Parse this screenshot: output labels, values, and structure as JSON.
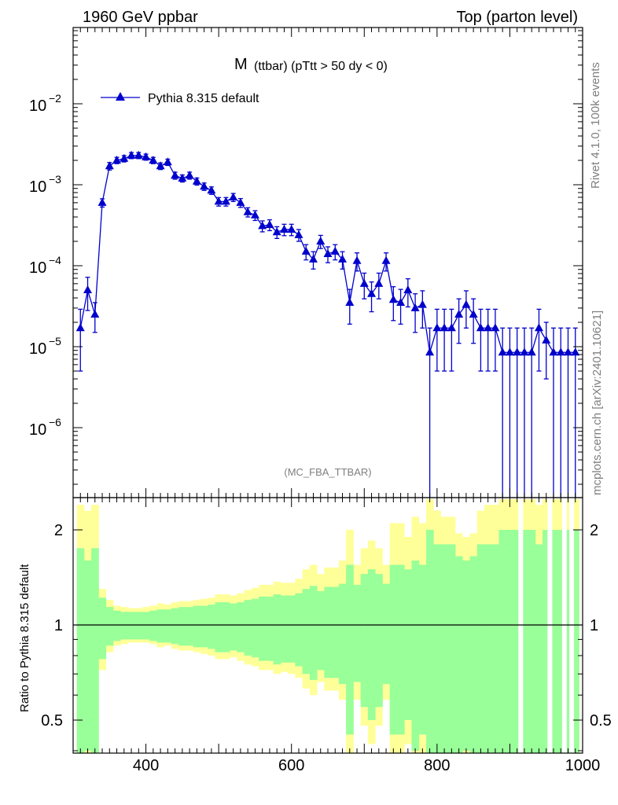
{
  "header": {
    "left_title": "1960 GeV ppbar",
    "right_title": "Top (parton level)"
  },
  "side_text": {
    "rivet": "Rivet 4.1.0,  100k events",
    "mcplots": "mcplots.cern.ch [arXiv:2401.10621]"
  },
  "colors": {
    "mc": "#0000cc",
    "band_stat": "#99ff99",
    "band_total": "#ffff99",
    "axis": "#000000",
    "watermark": "#7f7f7f"
  },
  "chart_data": [
    {
      "type": "scatter",
      "title_main": "M",
      "title_sub": "(ttbar) (pTtt > 50 dy < 0)",
      "watermark": "(MC_FBA_TTBAR)",
      "xlim": [
        300,
        1000
      ],
      "ylim": [
        1e-07,
        0.1
      ],
      "yscale": "log",
      "ytick_labels": [
        {
          "base": "10",
          "exp": "−6",
          "value": 1e-06
        },
        {
          "base": "10",
          "exp": "−5",
          "value": 1e-05
        },
        {
          "base": "10",
          "exp": "−4",
          "value": 0.0001
        },
        {
          "base": "10",
          "exp": "−3",
          "value": 0.001
        },
        {
          "base": "10",
          "exp": "−2",
          "value": 0.01
        }
      ],
      "legend": {
        "label": "Pythia 8.315 default",
        "location": "top-left"
      },
      "series": [
        {
          "name": "Pythia 8.315 default",
          "marker": "triangle-up",
          "x": [
            310,
            320,
            330,
            340,
            350,
            360,
            370,
            380,
            390,
            400,
            410,
            420,
            430,
            440,
            450,
            460,
            470,
            480,
            490,
            500,
            510,
            520,
            530,
            540,
            550,
            560,
            570,
            580,
            590,
            600,
            610,
            620,
            630,
            640,
            650,
            660,
            670,
            680,
            690,
            700,
            710,
            720,
            730,
            740,
            750,
            760,
            770,
            780,
            790,
            800,
            810,
            820,
            830,
            840,
            850,
            860,
            870,
            880,
            890,
            900,
            910,
            920,
            930,
            940,
            950,
            960,
            970,
            980,
            990
          ],
          "y": [
            1.7e-05,
            5e-05,
            2.5e-05,
            0.0006,
            0.0017,
            0.002,
            0.0021,
            0.0023,
            0.0023,
            0.0022,
            0.002,
            0.0017,
            0.0019,
            0.0013,
            0.0012,
            0.0013,
            0.0011,
            0.00095,
            0.00085,
            0.00062,
            0.00062,
            0.0007,
            0.0006,
            0.00046,
            0.00042,
            0.00031,
            0.00032,
            0.00026,
            0.00028,
            0.00028,
            0.00024,
            0.00015,
            0.00012,
            0.0002,
            0.00014,
            0.00015,
            0.00012,
            3.5e-05,
            0.000115,
            6e-05,
            4.5e-05,
            6e-05,
            0.000115,
            3.8e-05,
            3.5e-05,
            5e-05,
            3e-05,
            3.3e-05,
            8.5e-06,
            1.7e-05,
            1.7e-05,
            1.7e-05,
            2.5e-05,
            3.3e-05,
            2.5e-05,
            1.7e-05,
            1.7e-05,
            1.7e-05,
            8.5e-06,
            8.5e-06,
            8.5e-06,
            8.5e-06,
            8.5e-06,
            1.7e-05,
            1.2e-05,
            8.5e-06,
            8.5e-06,
            8.5e-06,
            8.5e-06
          ],
          "y_err_low": [
            1.2e-05,
            2.2e-05,
            1e-05,
            7e-05,
            0.00018,
            0.00018,
            0.00019,
            0.0002,
            0.0002,
            0.00019,
            0.00018,
            0.00016,
            0.00017,
            0.00013,
            0.00012,
            0.00013,
            0.00011,
            0.0001,
            9e-05,
            7.5e-05,
            7.5e-05,
            8e-05,
            7.5e-05,
            6e-05,
            5.8e-05,
            4.8e-05,
            4.9e-05,
            4.3e-05,
            4.5e-05,
            4.5e-05,
            4e-05,
            3.2e-05,
            2.9e-05,
            3.7e-05,
            3.1e-05,
            3.2e-05,
            2.9e-05,
            1.6e-05,
            2.9e-05,
            2.1e-05,
            1.8e-05,
            2.1e-05,
            2.9e-05,
            1.7e-05,
            1.6e-05,
            1.9e-05,
            1.5e-05,
            1.6e-05,
            8.5e-06,
            1.2e-05,
            1.2e-05,
            1.2e-05,
            1.4e-05,
            1.6e-05,
            1.4e-05,
            1.2e-05,
            1.2e-05,
            1.2e-05,
            8.5e-06,
            8.5e-06,
            8.5e-06,
            8.5e-06,
            8.5e-06,
            1.2e-05,
            8e-06,
            8.5e-06,
            8.5e-06,
            8.5e-06,
            8.5e-06
          ],
          "y_err_high": [
            1.2e-05,
            2.2e-05,
            1e-05,
            7e-05,
            0.00018,
            0.00018,
            0.00019,
            0.0002,
            0.0002,
            0.00019,
            0.00018,
            0.00016,
            0.00017,
            0.00013,
            0.00012,
            0.00013,
            0.00011,
            0.0001,
            9e-05,
            7.5e-05,
            7.5e-05,
            8e-05,
            7.5e-05,
            6e-05,
            5.8e-05,
            4.8e-05,
            4.9e-05,
            4.3e-05,
            4.5e-05,
            4.5e-05,
            4e-05,
            3.2e-05,
            2.9e-05,
            3.7e-05,
            3.1e-05,
            3.2e-05,
            2.9e-05,
            1.6e-05,
            2.9e-05,
            2.1e-05,
            1.8e-05,
            2.1e-05,
            2.9e-05,
            1.7e-05,
            1.6e-05,
            1.9e-05,
            1.5e-05,
            1.6e-05,
            8.5e-06,
            1.2e-05,
            1.2e-05,
            1.2e-05,
            1.4e-05,
            1.6e-05,
            1.4e-05,
            1.2e-05,
            1.2e-05,
            1.2e-05,
            8.5e-06,
            8.5e-06,
            8.5e-06,
            8.5e-06,
            8.5e-06,
            1.2e-05,
            8e-06,
            8.5e-06,
            8.5e-06,
            8.5e-06,
            8.5e-06
          ]
        }
      ]
    },
    {
      "type": "bar",
      "ylabel": "Ratio to Pythia 8.315 default",
      "xlim": [
        300,
        1000
      ],
      "ylim": [
        0.38,
        2.35
      ],
      "yscale": "log",
      "x_tick_labels": [
        "400",
        "600",
        "800",
        "1000"
      ],
      "y_tick_labels": [
        "0.5",
        "1",
        "2"
      ],
      "reference_line": 1,
      "bin_edges_start": 305,
      "bin_width": 10,
      "stat_band": {
        "name": "stat",
        "low": [
          0.25,
          0.4,
          0.25,
          0.78,
          0.86,
          0.89,
          0.9,
          0.9,
          0.9,
          0.9,
          0.89,
          0.88,
          0.88,
          0.87,
          0.86,
          0.86,
          0.85,
          0.85,
          0.84,
          0.82,
          0.82,
          0.83,
          0.82,
          0.8,
          0.79,
          0.77,
          0.77,
          0.75,
          0.76,
          0.76,
          0.74,
          0.7,
          0.67,
          0.72,
          0.68,
          0.68,
          0.65,
          0.45,
          0.66,
          0.55,
          0.5,
          0.55,
          0.65,
          0.45,
          0.45,
          0.5,
          0.4,
          0.45,
          0.0,
          0.2,
          0.2,
          0.2,
          0.35,
          0.4,
          0.35,
          0.2,
          0.2,
          0.2,
          0.0,
          0.0,
          0.0,
          0.0,
          0.0,
          0.2,
          0.0,
          0.0,
          0.0,
          0.0,
          0.0
        ],
        "high": [
          1.75,
          1.6,
          1.75,
          1.22,
          1.14,
          1.11,
          1.1,
          1.1,
          1.1,
          1.1,
          1.11,
          1.12,
          1.12,
          1.13,
          1.14,
          1.14,
          1.15,
          1.15,
          1.16,
          1.18,
          1.18,
          1.17,
          1.18,
          1.2,
          1.21,
          1.23,
          1.23,
          1.25,
          1.24,
          1.24,
          1.26,
          1.3,
          1.33,
          1.28,
          1.32,
          1.32,
          1.35,
          1.55,
          1.34,
          1.45,
          1.5,
          1.45,
          1.35,
          1.55,
          1.55,
          1.5,
          1.6,
          1.55,
          2.0,
          1.8,
          1.8,
          1.8,
          1.65,
          1.6,
          1.65,
          1.8,
          1.8,
          1.8,
          2.0,
          2.0,
          2.0,
          2.0,
          2.0,
          1.8,
          2.0,
          2.0,
          2.0,
          2.0,
          2.0
        ]
      },
      "total_band": {
        "name": "total",
        "low": [
          0.2,
          0.3,
          0.2,
          0.72,
          0.82,
          0.86,
          0.87,
          0.88,
          0.88,
          0.88,
          0.87,
          0.85,
          0.86,
          0.84,
          0.83,
          0.83,
          0.82,
          0.81,
          0.8,
          0.78,
          0.78,
          0.79,
          0.77,
          0.75,
          0.74,
          0.72,
          0.72,
          0.7,
          0.71,
          0.7,
          0.68,
          0.63,
          0.6,
          0.66,
          0.62,
          0.62,
          0.58,
          0.38,
          0.58,
          0.48,
          0.42,
          0.48,
          0.58,
          0.38,
          0.38,
          0.42,
          0.35,
          0.38,
          0.0,
          0.1,
          0.1,
          0.1,
          0.3,
          0.35,
          0.3,
          0.1,
          0.1,
          0.1,
          0.0,
          0.0,
          0.0,
          0.0,
          0.0,
          0.1,
          0.0,
          0.0,
          0.0,
          0.0,
          0.0
        ],
        "high": [
          2.4,
          2.3,
          2.4,
          1.3,
          1.2,
          1.15,
          1.14,
          1.13,
          1.13,
          1.14,
          1.15,
          1.17,
          1.16,
          1.18,
          1.19,
          1.19,
          1.2,
          1.21,
          1.22,
          1.25,
          1.25,
          1.24,
          1.26,
          1.29,
          1.31,
          1.34,
          1.34,
          1.37,
          1.36,
          1.36,
          1.4,
          1.5,
          1.55,
          1.45,
          1.52,
          1.52,
          1.6,
          2.0,
          1.55,
          1.75,
          1.85,
          1.75,
          1.55,
          2.1,
          2.1,
          1.9,
          2.2,
          2.1,
          2.5,
          2.3,
          2.2,
          2.2,
          1.95,
          1.9,
          1.95,
          2.3,
          2.4,
          2.4,
          2.5,
          2.5,
          2.5,
          2.5,
          2.5,
          2.4,
          2.5,
          2.5,
          2.5,
          2.5,
          2.5
        ]
      },
      "gap_bins": [
        915,
        955,
        975,
        985
      ]
    }
  ]
}
